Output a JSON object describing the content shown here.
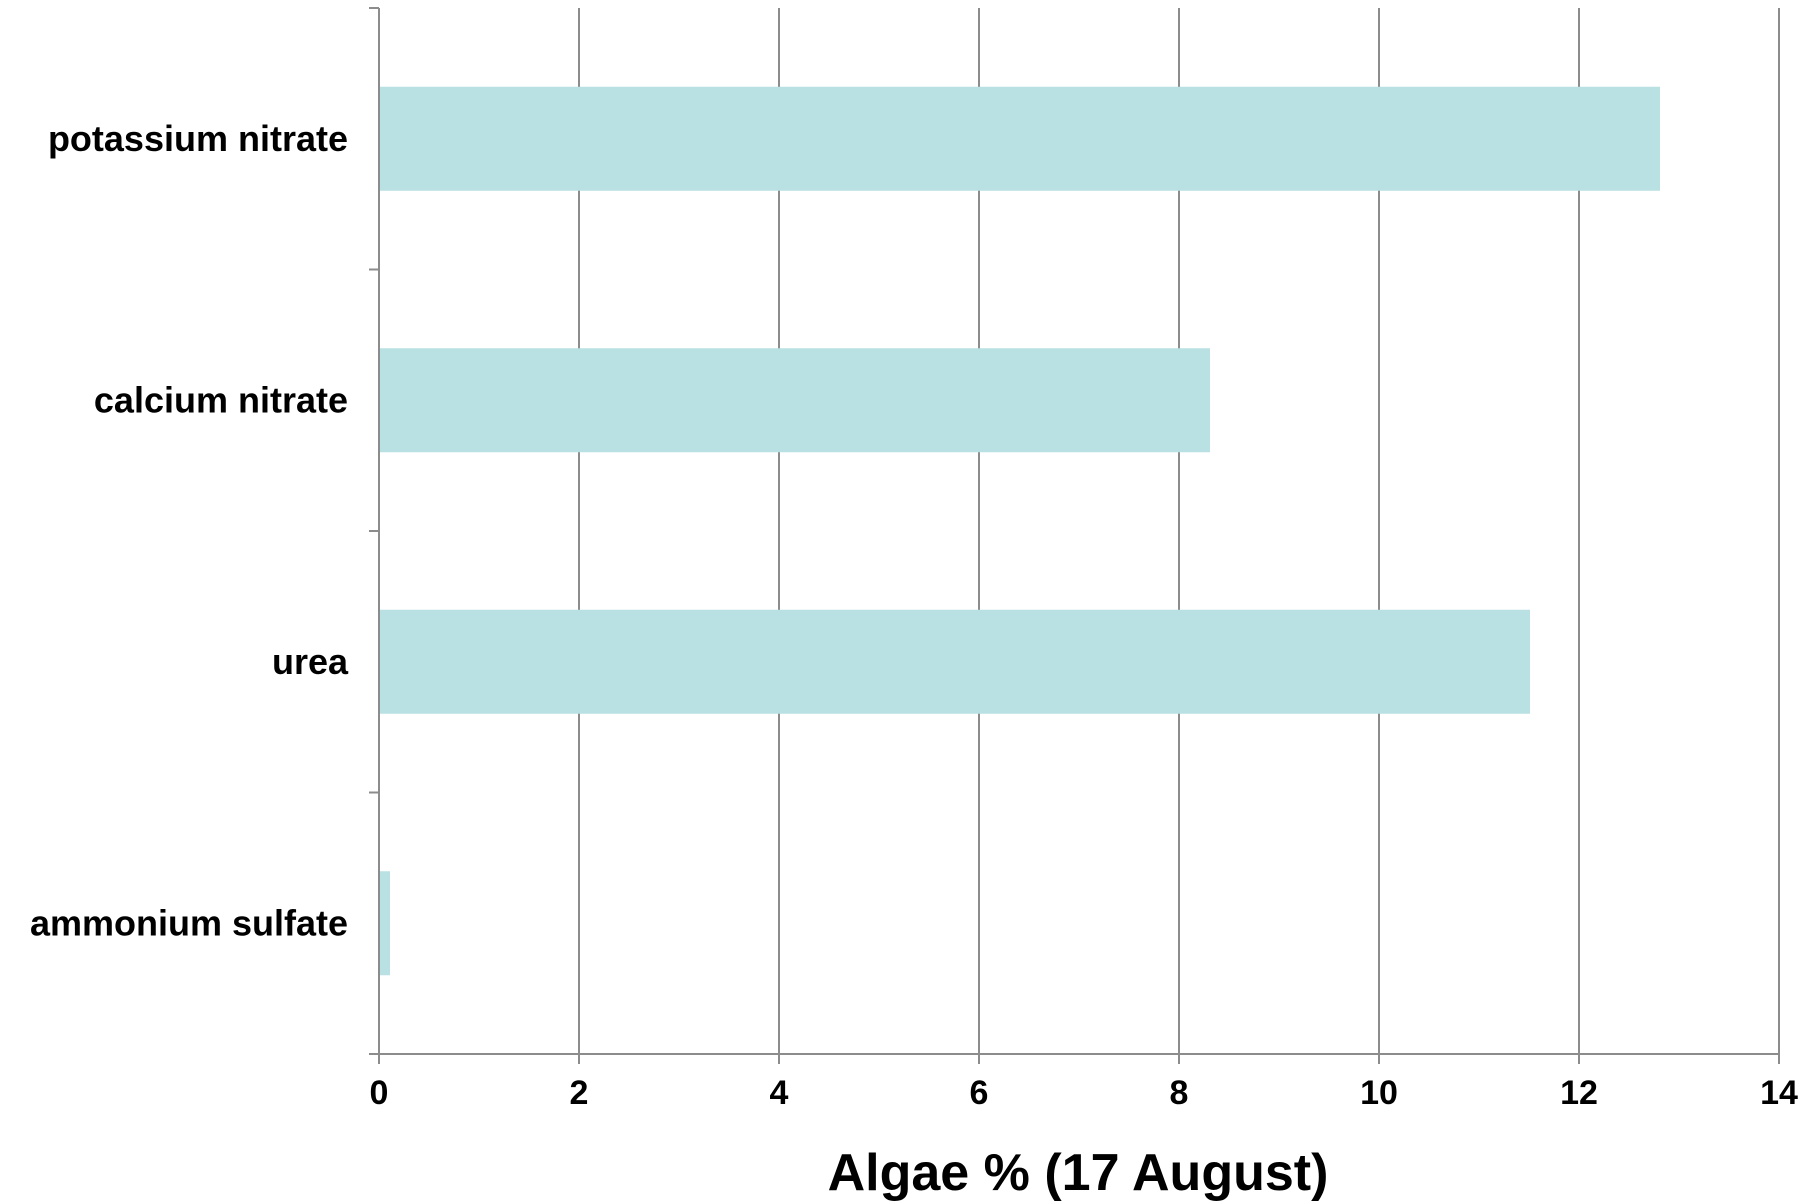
{
  "chart_data": {
    "type": "bar",
    "orientation": "horizontal",
    "categories": [
      "potassium nitrate",
      "calcium nitrate",
      "urea",
      "ammonium sulfate"
    ],
    "values": [
      12.8,
      8.3,
      11.5,
      0.1
    ],
    "xlabel": "Algae % (17 August)",
    "ylabel": "",
    "xlim": [
      0,
      14
    ],
    "xticks": [
      0,
      2,
      4,
      6,
      8,
      10,
      12,
      14
    ],
    "grid": "vertical",
    "bar_color": "#b9e0e2",
    "grid_color": "#8c8c8c"
  }
}
